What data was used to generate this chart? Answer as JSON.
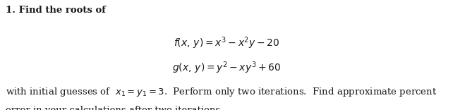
{
  "line1": "1. Find the roots of",
  "eq1": "$f(x,\\, y) = x^3 - x^2y - 20$",
  "eq2": "$g(x,\\, y) = y^2 - xy^3 + 60$",
  "line3": "with initial guesses of  $x_1 = y_1 = 3$.  Perform only two iterations.  Find approximate percent",
  "line4": "error in your calculations after two iterations.",
  "background_color": "#ffffff",
  "text_color": "#1a1a1a",
  "fontsize_body": 9.5,
  "fontsize_eq": 10.0,
  "fig_width": 6.42,
  "fig_height": 1.56,
  "dpi": 100
}
